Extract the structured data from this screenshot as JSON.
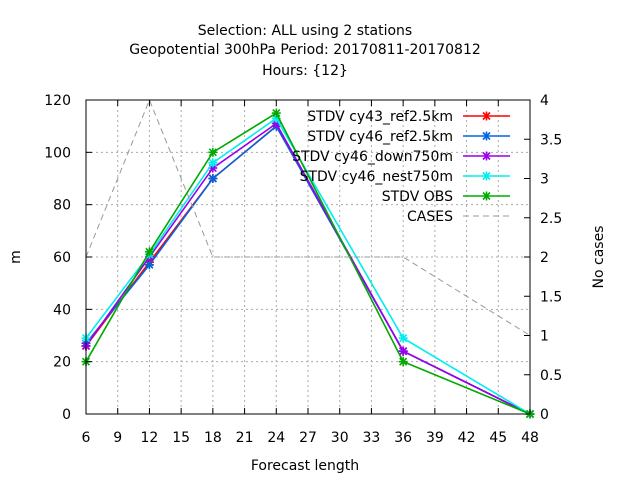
{
  "chart_data": {
    "type": "line",
    "title_lines": [
      "Selection: ALL using     2 stations",
      "Geopotential 300hPa   Period: 20170811-20170812",
      "Hours: {12}"
    ],
    "xlabel": "Forecast length",
    "ylabel": "m",
    "y2label": "No cases",
    "xlim": [
      6,
      48
    ],
    "ylim": [
      0,
      120
    ],
    "y2lim": [
      0,
      4
    ],
    "xticks": [
      6,
      9,
      12,
      15,
      18,
      21,
      24,
      27,
      30,
      33,
      36,
      39,
      42,
      45,
      48
    ],
    "yticks": [
      0,
      20,
      40,
      60,
      80,
      100,
      120
    ],
    "y2ticks": [
      "0",
      "0.5",
      "1",
      "1.5",
      "2",
      "2.5",
      "3",
      "3.5",
      "4"
    ],
    "x": [
      6,
      12,
      18,
      24,
      36,
      48
    ],
    "grid": true,
    "legend_position": "top-right",
    "series": [
      {
        "name": "STDV cy43_ref2.5km",
        "color": "#ff0000",
        "marker": "x",
        "values": [
          26,
          58,
          90,
          110,
          24,
          0
        ]
      },
      {
        "name": "STDV cy46_ref2.5km",
        "color": "#0066dd",
        "marker": "x",
        "values": [
          27,
          57,
          90,
          110,
          24,
          0
        ]
      },
      {
        "name": "STDV cy46_down750m",
        "color": "#9900ee",
        "marker": "x",
        "values": [
          26,
          60,
          94,
          111,
          24,
          0
        ]
      },
      {
        "name": "STDV cy46_nest750m",
        "color": "#00eeee",
        "marker": "x",
        "values": [
          29,
          61,
          96,
          113,
          29,
          0
        ]
      },
      {
        "name": "STDV OBS",
        "color": "#00aa00",
        "marker": "x",
        "values": [
          20,
          62,
          100,
          115,
          20,
          0
        ]
      },
      {
        "name": "CASES",
        "color": "#999999",
        "dashed": true,
        "axis": "y2",
        "values": [
          2,
          4,
          2,
          2,
          2,
          1
        ]
      }
    ]
  }
}
